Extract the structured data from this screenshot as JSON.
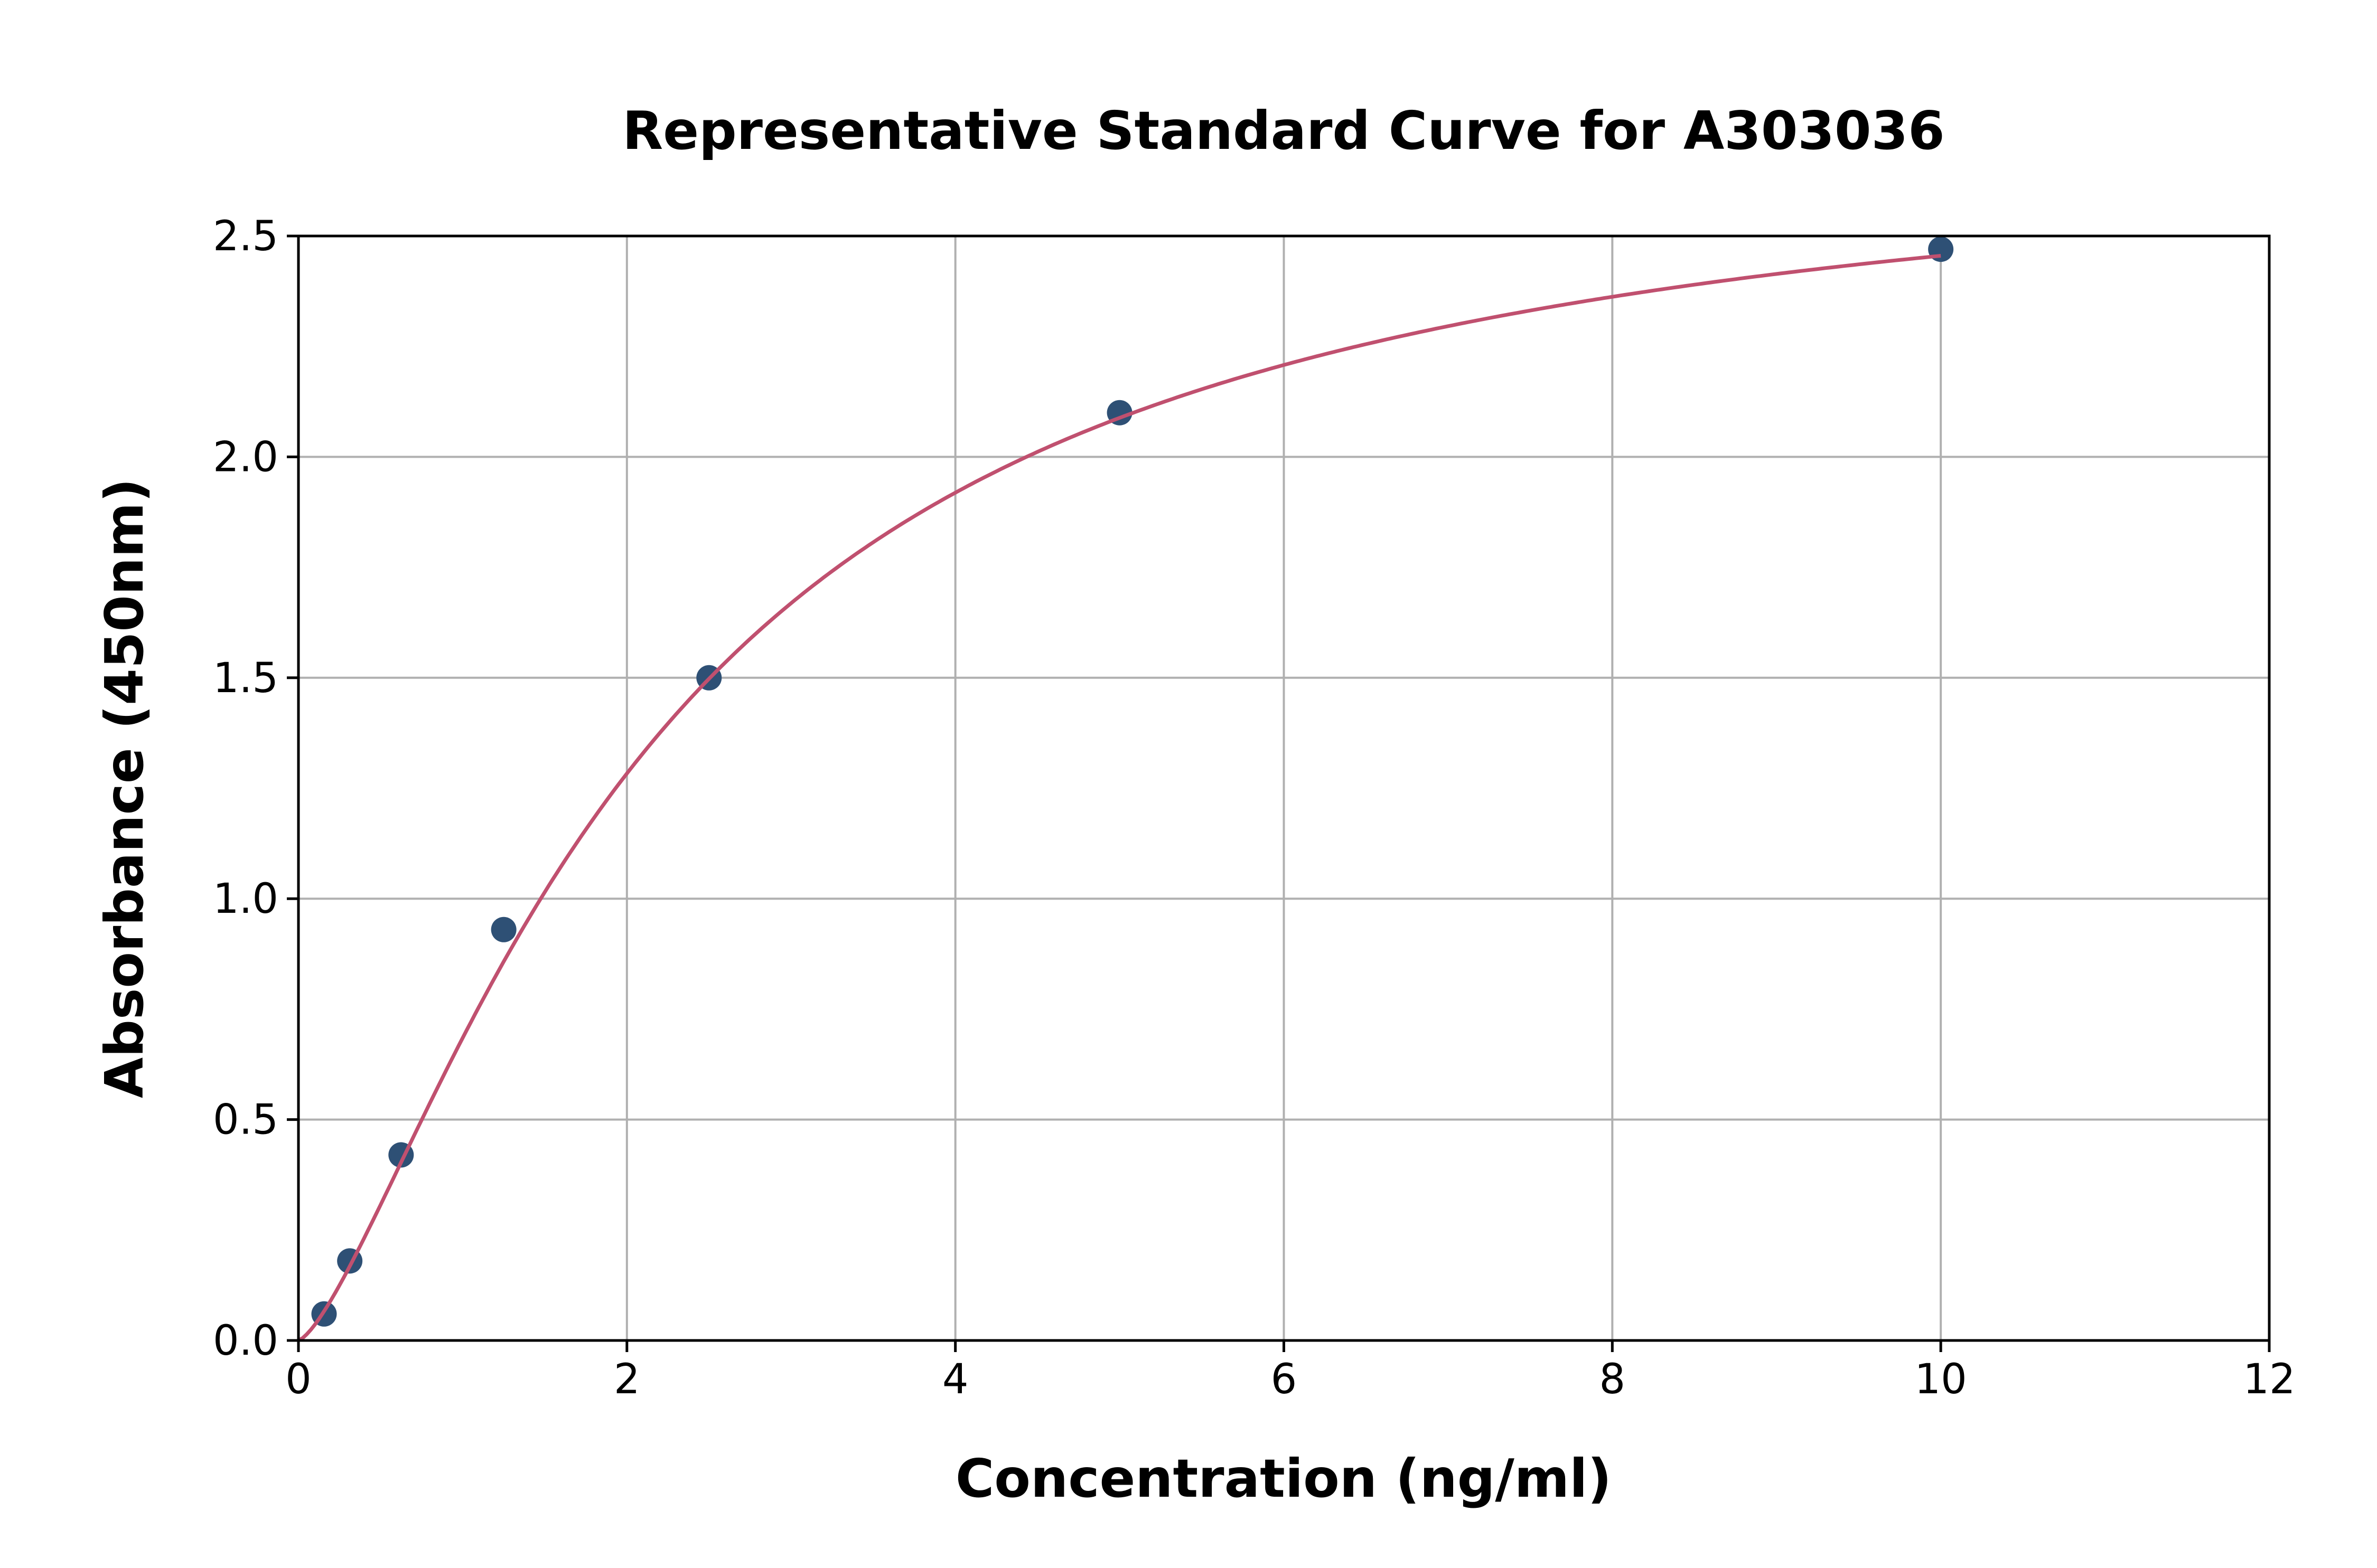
{
  "chart_data": {
    "type": "scatter",
    "title": "Representative Standard Curve for A303036",
    "xlabel": "Concentration (ng/ml)",
    "ylabel": "Absorbance (450nm)",
    "xlim": [
      0,
      12
    ],
    "ylim": [
      0,
      2.5
    ],
    "xticks": [
      "0",
      "2",
      "4",
      "6",
      "8",
      "10",
      "12"
    ],
    "yticks": [
      "0.0",
      "0.5",
      "1.0",
      "1.5",
      "2.0",
      "2.5"
    ],
    "grid": true,
    "points": {
      "x": [
        0.156,
        0.3125,
        0.625,
        1.25,
        2.5,
        5,
        10
      ],
      "y": [
        0.06,
        0.18,
        0.42,
        0.93,
        1.5,
        2.1,
        2.47
      ]
    },
    "fit_curve": "four-parameter logistic",
    "colors": {
      "points": "#2e5075",
      "curve": "#c0506f",
      "grid": "#b0b0b0"
    }
  }
}
